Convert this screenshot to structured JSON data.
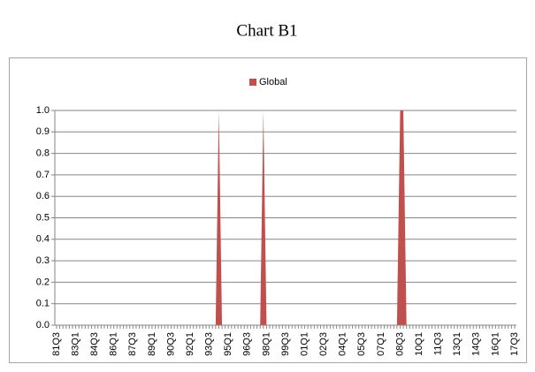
{
  "chart_data": {
    "type": "area",
    "title": "Chart B1",
    "categories": [
      "81Q3",
      null,
      null,
      null,
      null,
      null,
      "83Q1",
      null,
      null,
      null,
      null,
      null,
      "84Q3",
      null,
      null,
      null,
      null,
      null,
      "86Q1",
      null,
      null,
      null,
      null,
      null,
      "87Q3",
      null,
      null,
      null,
      null,
      null,
      "89Q1",
      null,
      null,
      null,
      null,
      null,
      "90Q3",
      null,
      null,
      null,
      null,
      null,
      "92Q1",
      null,
      null,
      null,
      null,
      null,
      "93Q3",
      null,
      null,
      null,
      null,
      null,
      "95Q1",
      null,
      null,
      null,
      null,
      null,
      "96Q3",
      null,
      null,
      null,
      null,
      null,
      "98Q1",
      null,
      null,
      null,
      null,
      null,
      "99Q3",
      null,
      null,
      null,
      null,
      null,
      "01Q1",
      null,
      null,
      null,
      null,
      null,
      "02Q3",
      null,
      null,
      null,
      null,
      null,
      "04Q1",
      null,
      null,
      null,
      null,
      null,
      "05Q3",
      null,
      null,
      null,
      null,
      null,
      "07Q1",
      null,
      null,
      null,
      null,
      null,
      "08Q3",
      null,
      null,
      null,
      null,
      null,
      "10Q1",
      null,
      null,
      null,
      null,
      null,
      "11Q3",
      null,
      null,
      null,
      null,
      null,
      "13Q1",
      null,
      null,
      null,
      null,
      null,
      "14Q3",
      null,
      null,
      null,
      null,
      null,
      "16Q1",
      null,
      null,
      null,
      null,
      null,
      "17Q3"
    ],
    "series": [
      {
        "name": "Global",
        "color": "#c0504d",
        "values": [
          0,
          0,
          0,
          0,
          0,
          0,
          0,
          0,
          0,
          0,
          0,
          0,
          0,
          0,
          0,
          0,
          0,
          0,
          0,
          0,
          0,
          0,
          0,
          0,
          0,
          0,
          0,
          0,
          0,
          0,
          0,
          0,
          0,
          0,
          0,
          0,
          0,
          0,
          0,
          0,
          0,
          0,
          0,
          0,
          0,
          0,
          0,
          0,
          0,
          0,
          0,
          1,
          0,
          0,
          0,
          0,
          0,
          0,
          0,
          0,
          0,
          0,
          0,
          0,
          0,
          1,
          0,
          0,
          0,
          0,
          0,
          0,
          0,
          0,
          0,
          0,
          0,
          0,
          0,
          0,
          0,
          0,
          0,
          0,
          0,
          0,
          0,
          0,
          0,
          0,
          0,
          0,
          0,
          0,
          0,
          0,
          0,
          0,
          0,
          0,
          0,
          0,
          0,
          0,
          0,
          0,
          0,
          0,
          1,
          1,
          0,
          0,
          0,
          0,
          0,
          0,
          0,
          0,
          0,
          0,
          0,
          0,
          0,
          0,
          0,
          0,
          0,
          0,
          0,
          0,
          0,
          0,
          0,
          0,
          0,
          0,
          0,
          0,
          0,
          0,
          0,
          0,
          0,
          0,
          0
        ]
      }
    ],
    "ylim": [
      0,
      1
    ],
    "yticks": [
      {
        "value": 0,
        "label": "0.0"
      },
      0.1,
      0.2,
      0.3,
      0.4,
      0.5,
      0.6,
      0.7,
      0.8,
      0.9,
      {
        "value": 1,
        "label": "1.0"
      }
    ],
    "grid": true,
    "legend": "top"
  }
}
